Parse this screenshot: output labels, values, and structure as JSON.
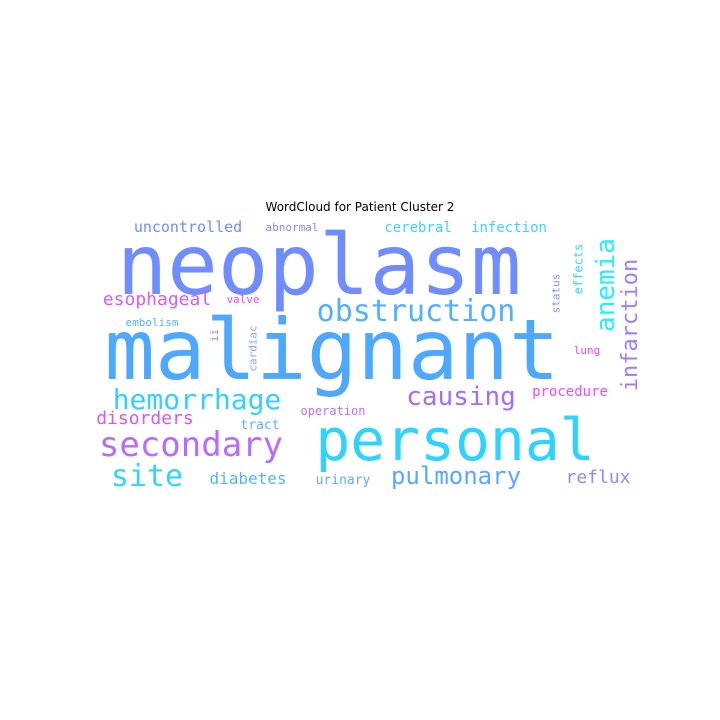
{
  "title": "WordCloud for Patient Cluster 2",
  "words": [
    {
      "text": "neoplasm",
      "color": "#6f8dff"
    },
    {
      "text": "malignant",
      "color": "#4ea8ff"
    },
    {
      "text": "personal",
      "color": "#2fd3ff"
    },
    {
      "text": "secondary",
      "color": "#b86bff"
    },
    {
      "text": "obstruction",
      "color": "#52b0ff"
    },
    {
      "text": "hemorrhage",
      "color": "#34d0ff"
    },
    {
      "text": "anemia",
      "color": "#22f0ff"
    },
    {
      "text": "infarction",
      "color": "#a07cff"
    },
    {
      "text": "causing",
      "color": "#a46cff"
    },
    {
      "text": "site",
      "color": "#2fd6ff"
    },
    {
      "text": "pulmonary",
      "color": "#5aa8ff"
    },
    {
      "text": "esophageal",
      "color": "#d65bff"
    },
    {
      "text": "disorders",
      "color": "#d357ff"
    },
    {
      "text": "reflux",
      "color": "#8a8dff"
    },
    {
      "text": "diabetes",
      "color": "#56b3ff"
    },
    {
      "text": "uncontrolled",
      "color": "#6f8dff"
    },
    {
      "text": "cerebral",
      "color": "#3bd0ff"
    },
    {
      "text": "infection",
      "color": "#38d6ff"
    },
    {
      "text": "procedure",
      "color": "#f04bff"
    },
    {
      "text": "urinary",
      "color": "#60a9ff"
    },
    {
      "text": "tract",
      "color": "#56b6ff"
    },
    {
      "text": "operation",
      "color": "#bf6cff"
    },
    {
      "text": "abnormal",
      "color": "#8b87ff"
    },
    {
      "text": "valve",
      "color": "#f244ff"
    },
    {
      "text": "embolism",
      "color": "#5cb2ff"
    },
    {
      "text": "cardiac",
      "color": "#8aa0ff"
    },
    {
      "text": "ii",
      "color": "#9b87ff"
    },
    {
      "text": "effects",
      "color": "#30d8ff"
    },
    {
      "text": "status",
      "color": "#8b8dff"
    },
    {
      "text": "lung",
      "color": "#f040ff"
    }
  ]
}
